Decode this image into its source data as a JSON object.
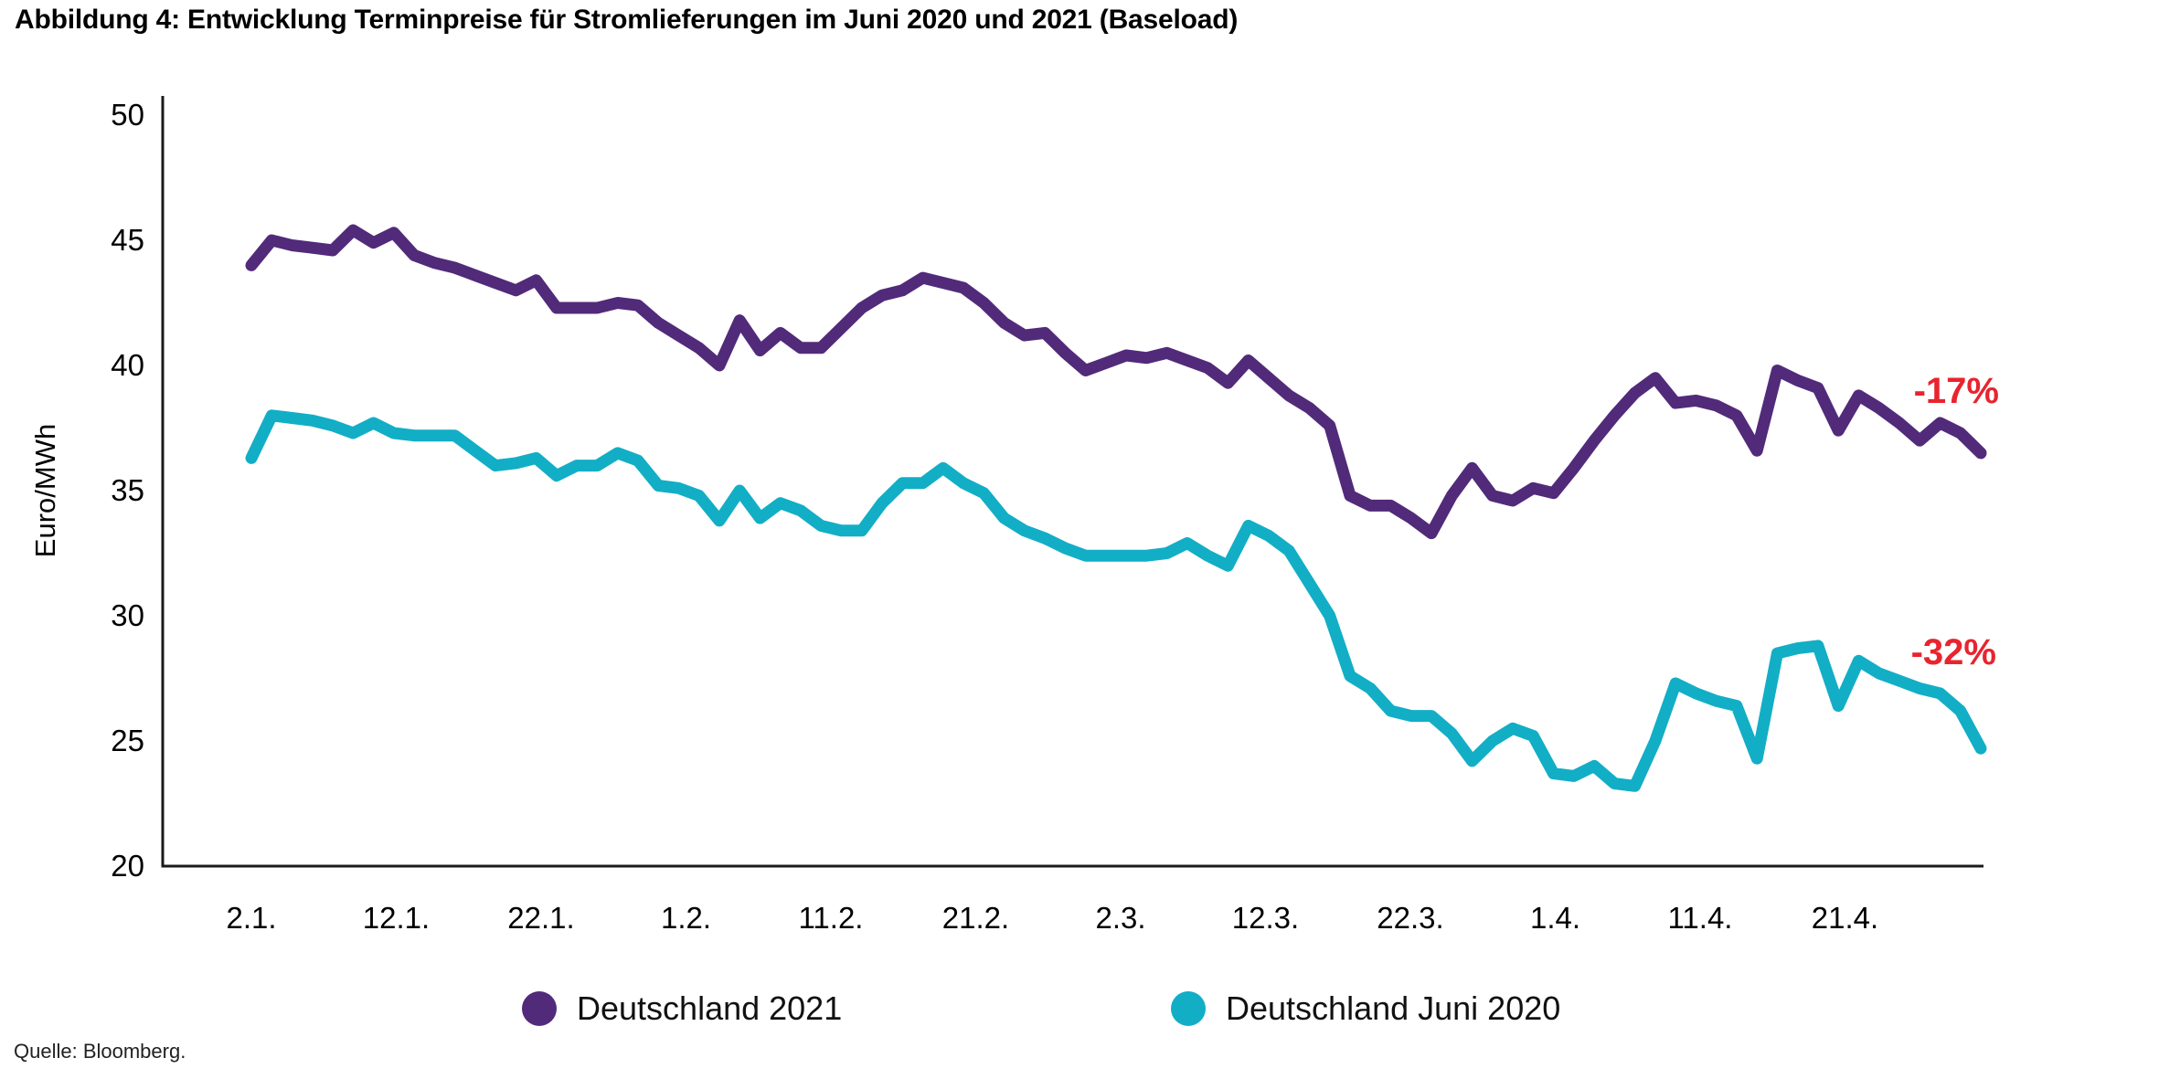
{
  "title": "Abbildung 4: Entwicklung Terminpreise für Stromlieferungen im Juni 2020 und 2021 (Baseload)",
  "source": "Quelle: Bloomberg.",
  "chart_data": {
    "type": "line",
    "title": "Abbildung 4: Entwicklung Terminpreise für Stromlieferungen im Juni 2020 und 2021 (Baseload)",
    "xlabel": "",
    "ylabel": "Euro/MWh",
    "ylim": [
      20,
      50
    ],
    "y_ticks": [
      50,
      45,
      40,
      35,
      30,
      25,
      20
    ],
    "x_tick_labels": [
      "2.1.",
      "12.1.",
      "22.1.",
      "1.2.",
      "11.2.",
      "21.2.",
      "2.3.",
      "12.3.",
      "22.3.",
      "1.4.",
      "11.4.",
      "21.4."
    ],
    "grid": false,
    "legend_position": "bottom",
    "annotation_color": "#e8242f",
    "axis_color": "#1a1a1a",
    "series": [
      {
        "name": "Deutschland 2021",
        "color": "#522a7a",
        "annotation": "-17%",
        "values": [
          44.0,
          45.0,
          44.8,
          44.7,
          44.6,
          45.4,
          44.9,
          45.3,
          44.4,
          44.1,
          43.9,
          43.6,
          43.3,
          43.0,
          43.4,
          42.3,
          42.3,
          42.3,
          42.5,
          42.4,
          41.7,
          41.2,
          40.7,
          40.0,
          41.8,
          40.6,
          41.3,
          40.7,
          40.7,
          41.5,
          42.3,
          42.8,
          43.0,
          43.5,
          43.3,
          43.1,
          42.5,
          41.7,
          41.2,
          41.3,
          40.5,
          39.8,
          40.1,
          40.4,
          40.3,
          40.5,
          40.2,
          39.9,
          39.3,
          40.2,
          39.5,
          38.8,
          38.3,
          37.6,
          34.8,
          34.4,
          34.4,
          33.9,
          33.3,
          34.8,
          35.9,
          34.8,
          34.6,
          35.1,
          34.9,
          35.9,
          37.0,
          38.0,
          38.9,
          39.5,
          38.5,
          38.6,
          38.4,
          38.0,
          36.6,
          39.8,
          39.4,
          39.1,
          37.4,
          38.8,
          38.3,
          37.7,
          37.0,
          37.7,
          37.3,
          36.5
        ]
      },
      {
        "name": "Deutschland Juni 2020",
        "color": "#12aec6",
        "annotation": "-32%",
        "values": [
          36.3,
          38.0,
          37.9,
          37.8,
          37.6,
          37.3,
          37.7,
          37.3,
          37.2,
          37.2,
          37.2,
          36.6,
          36.0,
          36.1,
          36.3,
          35.6,
          36.0,
          36.0,
          36.5,
          36.2,
          35.2,
          35.1,
          34.8,
          33.8,
          35.0,
          33.9,
          34.5,
          34.2,
          33.6,
          33.4,
          33.4,
          34.5,
          35.3,
          35.3,
          35.9,
          35.3,
          34.9,
          33.9,
          33.4,
          33.1,
          32.7,
          32.4,
          32.4,
          32.4,
          32.4,
          32.5,
          32.9,
          32.4,
          32.0,
          33.6,
          33.2,
          32.6,
          31.3,
          30.0,
          27.6,
          27.1,
          26.2,
          26.0,
          26.0,
          25.3,
          24.2,
          25.0,
          25.5,
          25.2,
          23.7,
          23.6,
          24.0,
          23.3,
          23.2,
          25.0,
          27.3,
          26.9,
          26.6,
          26.4,
          24.3,
          28.5,
          28.7,
          28.8,
          26.4,
          28.2,
          27.7,
          27.4,
          27.1,
          26.9,
          26.2,
          24.7
        ]
      }
    ]
  }
}
